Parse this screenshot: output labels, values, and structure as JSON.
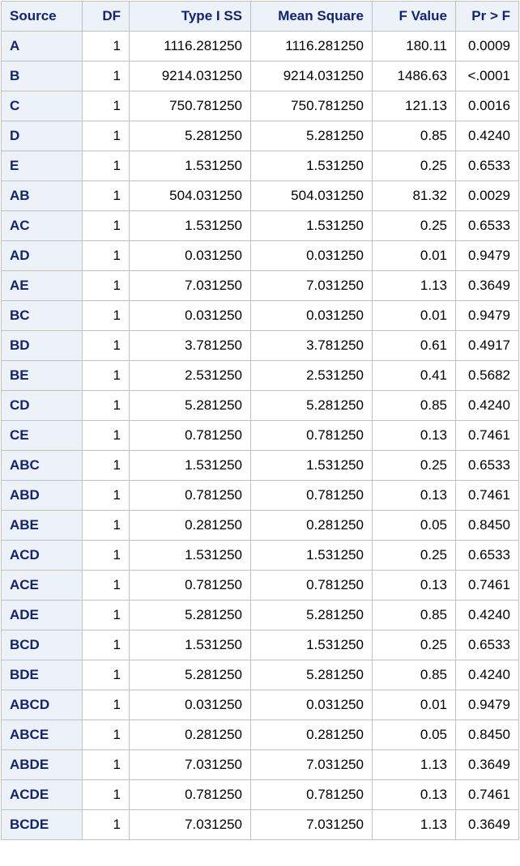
{
  "table": {
    "headers": [
      "Source",
      "DF",
      "Type I SS",
      "Mean Square",
      "F Value",
      "Pr > F"
    ],
    "rows": [
      [
        "A",
        "1",
        "1116.281250",
        "1116.281250",
        "180.11",
        "0.0009"
      ],
      [
        "B",
        "1",
        "9214.031250",
        "9214.031250",
        "1486.63",
        "<.0001"
      ],
      [
        "C",
        "1",
        "750.781250",
        "750.781250",
        "121.13",
        "0.0016"
      ],
      [
        "D",
        "1",
        "5.281250",
        "5.281250",
        "0.85",
        "0.4240"
      ],
      [
        "E",
        "1",
        "1.531250",
        "1.531250",
        "0.25",
        "0.6533"
      ],
      [
        "AB",
        "1",
        "504.031250",
        "504.031250",
        "81.32",
        "0.0029"
      ],
      [
        "AC",
        "1",
        "1.531250",
        "1.531250",
        "0.25",
        "0.6533"
      ],
      [
        "AD",
        "1",
        "0.031250",
        "0.031250",
        "0.01",
        "0.9479"
      ],
      [
        "AE",
        "1",
        "7.031250",
        "7.031250",
        "1.13",
        "0.3649"
      ],
      [
        "BC",
        "1",
        "0.031250",
        "0.031250",
        "0.01",
        "0.9479"
      ],
      [
        "BD",
        "1",
        "3.781250",
        "3.781250",
        "0.61",
        "0.4917"
      ],
      [
        "BE",
        "1",
        "2.531250",
        "2.531250",
        "0.41",
        "0.5682"
      ],
      [
        "CD",
        "1",
        "5.281250",
        "5.281250",
        "0.85",
        "0.4240"
      ],
      [
        "CE",
        "1",
        "0.781250",
        "0.781250",
        "0.13",
        "0.7461"
      ],
      [
        "ABC",
        "1",
        "1.531250",
        "1.531250",
        "0.25",
        "0.6533"
      ],
      [
        "ABD",
        "1",
        "0.781250",
        "0.781250",
        "0.13",
        "0.7461"
      ],
      [
        "ABE",
        "1",
        "0.281250",
        "0.281250",
        "0.05",
        "0.8450"
      ],
      [
        "ACD",
        "1",
        "1.531250",
        "1.531250",
        "0.25",
        "0.6533"
      ],
      [
        "ACE",
        "1",
        "0.781250",
        "0.781250",
        "0.13",
        "0.7461"
      ],
      [
        "ADE",
        "1",
        "5.281250",
        "5.281250",
        "0.85",
        "0.4240"
      ],
      [
        "BCD",
        "1",
        "1.531250",
        "1.531250",
        "0.25",
        "0.6533"
      ],
      [
        "BDE",
        "1",
        "5.281250",
        "5.281250",
        "0.85",
        "0.4240"
      ],
      [
        "ABCD",
        "1",
        "0.031250",
        "0.031250",
        "0.01",
        "0.9479"
      ],
      [
        "ABCE",
        "1",
        "0.281250",
        "0.281250",
        "0.05",
        "0.8450"
      ],
      [
        "ABDE",
        "1",
        "7.031250",
        "7.031250",
        "1.13",
        "0.3649"
      ],
      [
        "ACDE",
        "1",
        "0.781250",
        "0.781250",
        "0.13",
        "0.7461"
      ],
      [
        "BCDE",
        "1",
        "7.031250",
        "7.031250",
        "1.13",
        "0.3649"
      ]
    ]
  },
  "colors": {
    "header_text": "#112277",
    "header_background": "#edf2f9",
    "border": "#c1c1c1"
  }
}
